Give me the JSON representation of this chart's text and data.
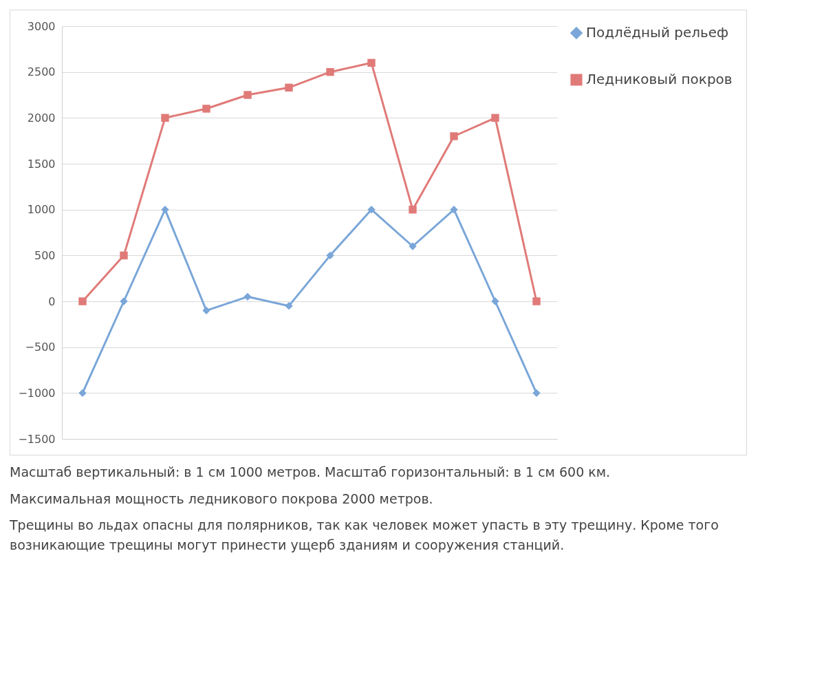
{
  "chart_data": {
    "type": "line",
    "categories": [
      null,
      null,
      null,
      null,
      null,
      null,
      null,
      null,
      null,
      null,
      null,
      null
    ],
    "series": [
      {
        "name": "Подлёдный рельеф",
        "color": "#7aa6d8",
        "marker": "diamond",
        "values": [
          -1000,
          0,
          1000,
          -100,
          50,
          -50,
          500,
          1000,
          600,
          1000,
          0,
          -1000
        ]
      },
      {
        "name": "Ледниковый покров",
        "color": "#e07a78",
        "marker": "square",
        "values": [
          0,
          500,
          2000,
          2100,
          2250,
          2330,
          2500,
          2600,
          1000,
          1800,
          2000,
          0
        ]
      }
    ],
    "ylim": [
      -1500,
      3000
    ],
    "yticks": [
      -1500,
      -1000,
      -500,
      0,
      500,
      1000,
      1500,
      2000,
      2500,
      3000
    ],
    "grid": "y",
    "legend": "right",
    "tick_labels": "y",
    "annotations": [
      "Масштаб вертикальный: в 1 см 1000 метров. Масштаб горизонтальный: в 1 см 600 км.",
      "Максимальная мощность ледникового покрова 2000 метров.",
      "Трещины во льдах опасны для полярников, так как человек может упасть в эту трещину. Кроме того возникающие трещины могут принести ущерб зданиям и сооружения станций."
    ]
  }
}
